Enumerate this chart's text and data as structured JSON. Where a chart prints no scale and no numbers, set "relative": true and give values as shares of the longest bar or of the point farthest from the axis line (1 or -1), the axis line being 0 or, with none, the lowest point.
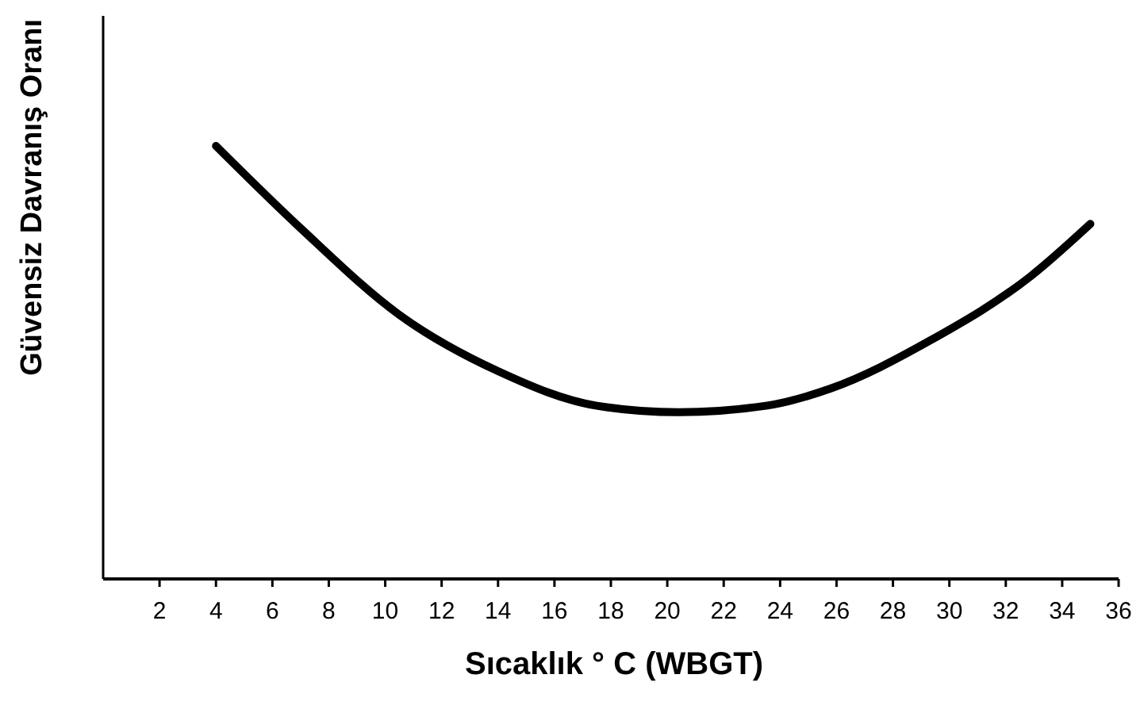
{
  "chart_data": {
    "type": "line",
    "xlabel": "Sıcaklık ° C  (WBGT)",
    "ylabel": "Güvensiz Davranış Oranı",
    "relative": true,
    "xlim": [
      0,
      36
    ],
    "xticks": [
      2,
      4,
      6,
      8,
      10,
      12,
      14,
      16,
      18,
      20,
      22,
      24,
      26,
      28,
      30,
      32,
      34,
      36
    ],
    "grid": false,
    "marker": "none",
    "line_style": "solid",
    "series": [
      {
        "color": "#000000",
        "x": [
          4,
          7,
          10.5,
          14,
          17.5,
          20.4,
          23.5,
          25.8,
          29.3,
          32.9,
          35
        ],
        "values": [
          1,
          0.81,
          0.61,
          0.48,
          0.4,
          0.385,
          0.4,
          0.44,
          0.55,
          0.7,
          0.82
        ]
      }
    ]
  }
}
